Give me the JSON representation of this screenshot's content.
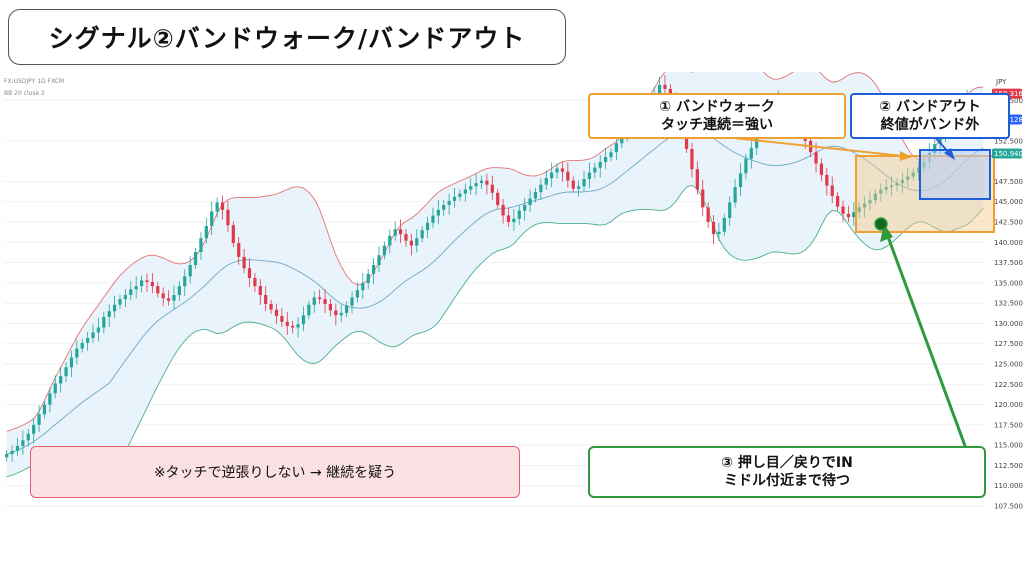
{
  "title": "シグナル②バンドウォーク/バンドアウト",
  "legend": {
    "line1": "FX:USDJPY 1D FXCM",
    "line2": "BB 20 close 2"
  },
  "currency": "JPY",
  "callouts": {
    "band_walk": {
      "line1": "① バンドウォーク",
      "line2": "タッチ連続＝強い"
    },
    "band_out": {
      "line1": "② バンドアウト",
      "line2": "終値がバンド外"
    },
    "warning": {
      "text": "※タッチで逆張りしない → 継続を疑う"
    },
    "pullback": {
      "line1": "③ 押し目／戻りでIN",
      "line2": "ミドル付近まで待つ"
    }
  },
  "price_tags": [
    {
      "value": "158.316",
      "color": "#e0394a"
    },
    {
      "value": "155.128",
      "color": "#2962ff"
    },
    {
      "value": "150.940",
      "color": "#26a69a"
    }
  ],
  "colors": {
    "up": "#26a69a",
    "down": "#e0394a",
    "upper_band": "#e57373",
    "middle_band": "#6ea8c8",
    "lower_band": "#4caf8a",
    "band_fill": "#e3f0fb",
    "orange": "#f0a030",
    "blue": "#1f5fd6",
    "green": "#2e9a3c"
  },
  "chart_data": {
    "type": "candlestick",
    "x_axis": "dates (unlabeled)",
    "y_axis": {
      "ticks": [
        "107.500",
        "110.000",
        "112.500",
        "115.000",
        "117.500",
        "120.000",
        "122.500",
        "125.000",
        "127.500",
        "130.000",
        "132.500",
        "135.000",
        "137.500",
        "140.000",
        "142.500",
        "145.000",
        "147.500",
        "152.500",
        "157.500"
      ],
      "range": [
        107.5,
        160
      ]
    },
    "series": [
      {
        "close": [
          113.9,
          114.3,
          114.9,
          115.6,
          116.4,
          117.5,
          118.8,
          120.0,
          121.4,
          122.6,
          123.5,
          124.6,
          125.8,
          126.9,
          127.6,
          128.2,
          128.9,
          129.5,
          130.8,
          131.5,
          132.3,
          133.0,
          133.5,
          134.2,
          134.6,
          135.3,
          135.1,
          134.6,
          133.7,
          133.1,
          132.8,
          133.5,
          134.6,
          135.8,
          137.2,
          138.8,
          140.5,
          142.0,
          143.8,
          144.9,
          144.0,
          142.1,
          139.9,
          138.2,
          136.8,
          135.6,
          134.6,
          133.5,
          132.4,
          131.7,
          130.9,
          130.2,
          129.7,
          129.5,
          129.9,
          131.0,
          132.3,
          133.2,
          133.0,
          132.4,
          131.6,
          131.0,
          131.3,
          132.2,
          133.2,
          134.1,
          135.0,
          136.1,
          137.2,
          138.4,
          139.6,
          140.8,
          141.6,
          141.0,
          140.2,
          139.6,
          140.5,
          141.5,
          142.4,
          143.3,
          144.0,
          144.6,
          145.1,
          145.6,
          146.0,
          146.5,
          146.9,
          147.3,
          147.6,
          147.1,
          146.1,
          144.6,
          143.3,
          142.5,
          142.9,
          143.9,
          144.6,
          145.4,
          146.2,
          147.1,
          147.9,
          148.6,
          149.1,
          148.7,
          147.6,
          146.6,
          146.9,
          147.8,
          148.6,
          149.2,
          149.9,
          150.5,
          151.1,
          152.2,
          153.5,
          154.6,
          155.4,
          156.1,
          156.9,
          157.8,
          158.4,
          159.4,
          158.9,
          157.6,
          155.8,
          153.8,
          151.5,
          149.0,
          146.5,
          144.3,
          142.5,
          141.0,
          141.3,
          143.0,
          144.9,
          146.8,
          148.5,
          150.3,
          151.6,
          153.2,
          154.6,
          155.9,
          157.1,
          157.5,
          157.1,
          156.2,
          155.0,
          153.8,
          152.5,
          151.1,
          149.7,
          148.3,
          147.0,
          145.7,
          144.4,
          143.5,
          143.1,
          143.7,
          144.3,
          144.8,
          145.2,
          146.0,
          146.5,
          146.8,
          147.0,
          147.3,
          147.7,
          148.1,
          148.6,
          149.2,
          150.0,
          151.0,
          152.1,
          153.2,
          154.3,
          155.3,
          156.1,
          156.9,
          157.6,
          156.4,
          155.0,
          153.6
        ]
      }
    ],
    "bands": [
      "upper",
      "middle",
      "lower"
    ]
  }
}
